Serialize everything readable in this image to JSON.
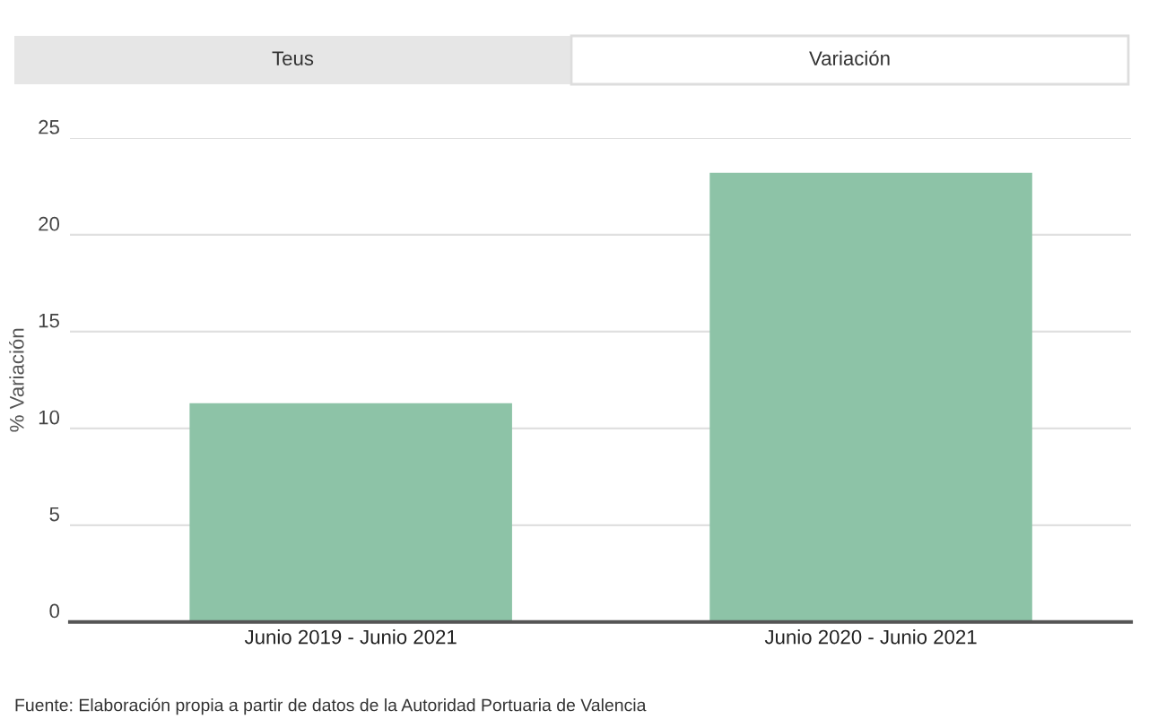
{
  "chart_data": {
    "type": "bar",
    "ylabel": "% Variación",
    "categories": [
      "Junio 2019 - Junio 2021",
      "Junio 2020 - Junio 2021"
    ],
    "values": [
      11.3,
      23.2
    ],
    "color": "#8dc3a7",
    "ylim": [
      0,
      25
    ],
    "yticks": [
      0,
      5,
      10,
      15,
      20,
      25
    ],
    "grid": "y",
    "legend": false,
    "annotations": [
      "Teus",
      "Variación",
      "Fuente: Elaboración propia a partir de datos de la Autoridad Portuaria de Valencia"
    ]
  }
}
